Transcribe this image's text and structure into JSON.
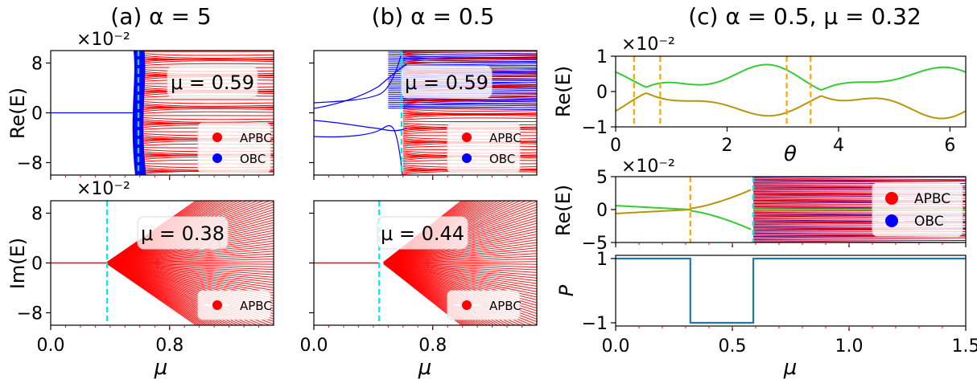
{
  "figure": {
    "titles": {
      "a": "(a)  α = 5",
      "b": "(b)  α = 0.5",
      "c": "(c)  α = 0.5, μ = 0.32"
    }
  },
  "chart_data": [
    {
      "id": "a-top",
      "type": "line",
      "ylabel": "Re(E)",
      "scale": "×10⁻²",
      "xlim": [
        0,
        1.5
      ],
      "ylim": [
        -10,
        10
      ],
      "xticks": [],
      "yticks": [
        "8",
        "0",
        "−8"
      ],
      "critical_mu": 0.59,
      "annotation": "μ = 0.59",
      "legend": {
        "position": "lower-right",
        "entries": [
          {
            "label": "APBC",
            "color": "#ff0000"
          },
          {
            "label": "OBC",
            "color": "#0000ff"
          }
        ]
      }
    },
    {
      "id": "a-bottom",
      "type": "line",
      "ylabel": "Im(E)",
      "xlabel": "μ",
      "scale": "×10⁻²",
      "xlim": [
        0,
        1.5
      ],
      "ylim": [
        -10,
        10
      ],
      "xticks": [
        "0.0",
        "0.8"
      ],
      "yticks": [
        "8",
        "0",
        "−8"
      ],
      "critical_mu": 0.38,
      "annotation": "μ = 0.38",
      "legend": {
        "position": "lower-right",
        "entries": [
          {
            "label": "APBC",
            "color": "#ff0000"
          }
        ]
      }
    },
    {
      "id": "b-top",
      "type": "line",
      "xlim": [
        0,
        1.5
      ],
      "ylim": [
        -10,
        10
      ],
      "critical_mu": 0.59,
      "annotation": "μ = 0.59",
      "legend": {
        "position": "lower-right",
        "entries": [
          {
            "label": "APBC",
            "color": "#ff0000"
          },
          {
            "label": "OBC",
            "color": "#0000ff"
          }
        ]
      }
    },
    {
      "id": "b-bottom",
      "type": "line",
      "xlabel": "μ",
      "xlim": [
        0,
        1.5
      ],
      "ylim": [
        -10,
        10
      ],
      "xticks": [
        "0.0",
        "0.8"
      ],
      "critical_mu": 0.44,
      "annotation": "μ = 0.44",
      "legend": {
        "position": "lower-right",
        "entries": [
          {
            "label": "APBC",
            "color": "#ff0000"
          }
        ]
      }
    },
    {
      "id": "c-top",
      "type": "line",
      "ylabel": "Re(E)",
      "xlabel": "θ",
      "scale": "×10⁻²",
      "xlim": [
        0,
        6.283
      ],
      "ylim": [
        -1,
        1
      ],
      "xticks": [
        "0",
        "2",
        "4",
        "6"
      ],
      "yticks": [
        "1",
        "0",
        "−1"
      ],
      "dashed_theta": [
        0.33,
        0.8,
        3.07,
        3.5
      ],
      "series": [
        {
          "color": "#33cc33"
        },
        {
          "color": "#b8960b"
        }
      ]
    },
    {
      "id": "c-mid",
      "type": "line",
      "ylabel": "Re(E)",
      "scale": "×10⁻²",
      "xlim": [
        0,
        1.5
      ],
      "ylim": [
        -5,
        5
      ],
      "yticks": [
        "5",
        "0",
        "−5"
      ],
      "dashed_mu": 0.32,
      "critical_mu": 0.59,
      "legend": {
        "position": "right",
        "entries": [
          {
            "label": "APBC",
            "color": "#ff0000"
          },
          {
            "label": "OBC",
            "color": "#0000ff"
          }
        ]
      }
    },
    {
      "id": "c-bottom",
      "type": "line",
      "ylabel": "P",
      "xlabel": "μ",
      "xlim": [
        0,
        1.5
      ],
      "ylim": [
        -1.1,
        1.1
      ],
      "xticks": [
        "0.0",
        "0.5",
        "1.0",
        "1.5"
      ],
      "yticks": [
        "1",
        "−1"
      ],
      "series": [
        {
          "color": "#1f77b4",
          "x": [
            0,
            0.32,
            0.32,
            0.59,
            0.59,
            1.5
          ],
          "y": [
            1,
            1,
            -1,
            -1,
            1,
            1
          ]
        }
      ]
    }
  ]
}
